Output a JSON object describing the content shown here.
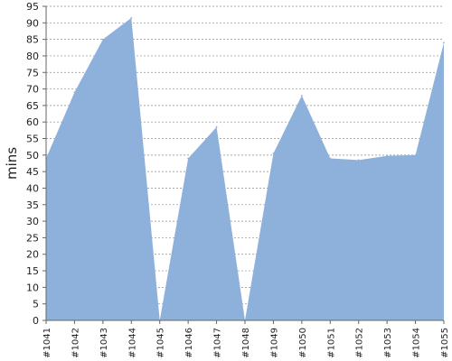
{
  "chart_data": {
    "type": "area",
    "title": "",
    "xlabel": "",
    "ylabel": "mins",
    "ylim": [
      0,
      95
    ],
    "y_tick_step": 5,
    "grid": true,
    "legend": "none",
    "categories": [
      "#1041",
      "#1042",
      "#1043",
      "#1044",
      "#1045",
      "#1046",
      "#1047",
      "#1048",
      "#1049",
      "#1050",
      "#1051",
      "#1052",
      "#1053",
      "#1054",
      "#1055"
    ],
    "series": [
      {
        "values": [
          49,
          69,
          85,
          91.5,
          0,
          49,
          58.5,
          0,
          50.5,
          68,
          49,
          48.5,
          49.8,
          50,
          84
        ],
        "color": "#8eb1db"
      }
    ]
  }
}
